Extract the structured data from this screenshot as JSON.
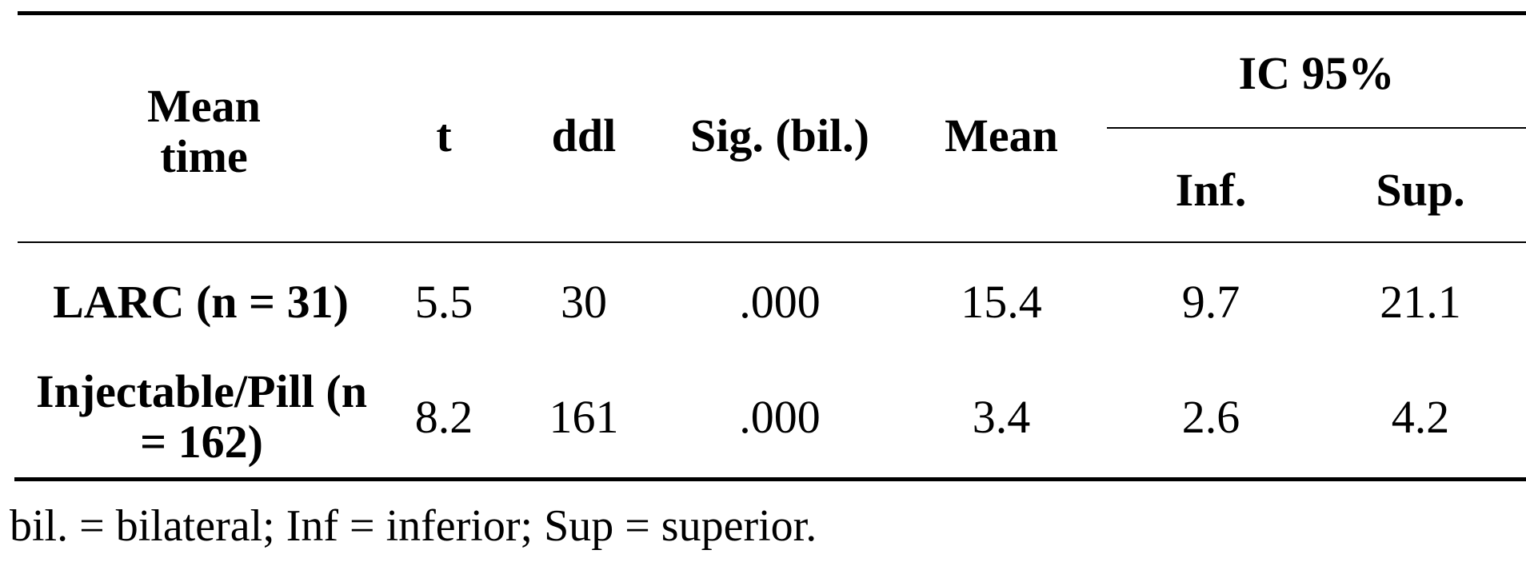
{
  "table": {
    "headers": {
      "col1": "Mean time",
      "col2": "t",
      "col3": "ddl",
      "col4": "Sig. (bil.)",
      "col5": "Mean",
      "group": "IC 95%",
      "group_sub1": "Inf.",
      "group_sub2": "Sup."
    },
    "rows": [
      {
        "label": "LARC (n = 31)",
        "t": "5.5",
        "ddl": "30",
        "sig": ".000",
        "mean": "15.4",
        "inf": "9.7",
        "sup": "21.1"
      },
      {
        "label": "Injectable/Pill (n = 162)",
        "t": "8.2",
        "ddl": "161",
        "sig": ".000",
        "mean": "3.4",
        "inf": "2.6",
        "sup": "4.2"
      }
    ]
  },
  "footnote": "bil. = bilateral; Inf = inferior; Sup = superior."
}
